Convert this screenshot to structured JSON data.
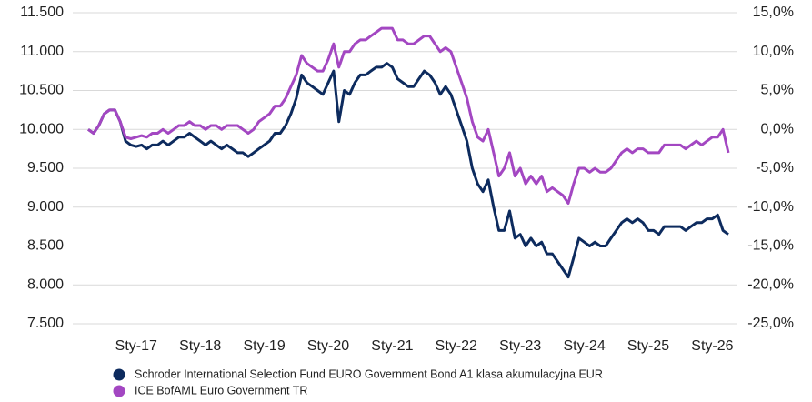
{
  "chart_data": {
    "type": "line",
    "categories": [
      null,
      null,
      null,
      null,
      null,
      null,
      null,
      null,
      null,
      "Sty-17",
      null,
      null,
      null,
      null,
      null,
      null,
      null,
      null,
      null,
      null,
      null,
      "Sty-18",
      null,
      null,
      null,
      null,
      null,
      null,
      null,
      null,
      null,
      null,
      null,
      "Sty-19",
      null,
      null,
      null,
      null,
      null,
      null,
      null,
      null,
      null,
      null,
      null,
      "Sty-20",
      null,
      null,
      null,
      null,
      null,
      null,
      null,
      null,
      null,
      null,
      null,
      "Sty-21",
      null,
      null,
      null,
      null,
      null,
      null,
      null,
      null,
      null,
      null,
      null,
      "Sty-22",
      null,
      null,
      null,
      null,
      null,
      null,
      null,
      null,
      null,
      null,
      null,
      "Sty-23",
      null,
      null,
      null,
      null,
      null,
      null,
      null,
      null,
      null,
      null,
      null,
      "Sty-24",
      null,
      null,
      null,
      null,
      null,
      null,
      null,
      null,
      null,
      null,
      null,
      "Sty-25",
      null,
      null,
      null,
      null,
      null,
      null,
      null,
      null,
      null,
      null,
      null,
      "Sty-26",
      null,
      null,
      null
    ],
    "series": [
      {
        "name": "Schroder International Selection Fund EURO Government Bond A1 klasa akumulacyjna EUR",
        "color": "#0d2b5e",
        "axis": "y",
        "values": [
          10000,
          9950,
          10050,
          10200,
          10250,
          10250,
          10100,
          9850,
          9800,
          9780,
          9800,
          9750,
          9800,
          9800,
          9850,
          9800,
          9850,
          9900,
          9900,
          9950,
          9900,
          9850,
          9800,
          9850,
          9800,
          9750,
          9800,
          9750,
          9700,
          9700,
          9650,
          9700,
          9750,
          9800,
          9850,
          9950,
          9950,
          10050,
          10200,
          10400,
          10700,
          10600,
          10550,
          10500,
          10450,
          10600,
          10750,
          10100,
          10500,
          10450,
          10600,
          10700,
          10700,
          10750,
          10800,
          10800,
          10850,
          10800,
          10650,
          10600,
          10550,
          10550,
          10650,
          10750,
          10700,
          10600,
          10450,
          10550,
          10450,
          10250,
          10050,
          9850,
          9500,
          9300,
          9200,
          9350,
          9000,
          8700,
          8700,
          8950,
          8600,
          8650,
          8500,
          8600,
          8500,
          8550,
          8400,
          8400,
          8300,
          8200,
          8100,
          8350,
          8600,
          8550,
          8500,
          8550,
          8500,
          8500,
          8600,
          8700,
          8800,
          8850,
          8800,
          8850,
          8800,
          8700,
          8700,
          8650,
          8750,
          8750,
          8750,
          8750,
          8700,
          8750,
          8800,
          8800,
          8850,
          8850,
          8900,
          8700,
          8650
        ]
      },
      {
        "name": "ICE BofAML Euro Government TR",
        "color": "#a347c2",
        "axis": "y2",
        "values": [
          0,
          -0.5,
          0.5,
          2,
          2.5,
          2.5,
          1,
          -1,
          -1.2,
          -1,
          -0.8,
          -1,
          -0.5,
          -0.5,
          0,
          -0.5,
          0,
          0.5,
          0.5,
          1,
          0.5,
          0.5,
          0,
          0.5,
          0.5,
          0,
          0.5,
          0.5,
          0.5,
          0,
          -0.5,
          0,
          1,
          1.5,
          2,
          3,
          3,
          4,
          5.5,
          7,
          9.5,
          8.5,
          8,
          7.5,
          7.5,
          9,
          11,
          8,
          10,
          10,
          11,
          11.5,
          11.5,
          12,
          12.5,
          13,
          13,
          13,
          11.5,
          11.5,
          11,
          11,
          11.5,
          12,
          12,
          11,
          10,
          10.5,
          10,
          8,
          6,
          4,
          1,
          -1,
          -1.5,
          0,
          -3,
          -6,
          -5,
          -3,
          -6,
          -5,
          -7,
          -6,
          -7,
          -6,
          -8,
          -7.5,
          -8,
          -8.5,
          -9.5,
          -7,
          -5,
          -5,
          -5.5,
          -5,
          -5.5,
          -5.5,
          -5,
          -4,
          -3,
          -2.5,
          -3,
          -2.5,
          -2.5,
          -3,
          -3,
          -3,
          -2,
          -2,
          -2,
          -2,
          -2.5,
          -2,
          -1.5,
          -2,
          -1.5,
          -1,
          -1,
          0,
          -3
        ]
      }
    ],
    "ylim": [
      7500,
      11500
    ],
    "yticks": [
      {
        "value": 7500,
        "label": "7.500"
      },
      {
        "value": 8000,
        "label": "8.000"
      },
      {
        "value": 8500,
        "label": "8.500"
      },
      {
        "value": 9000,
        "label": "9.000"
      },
      {
        "value": 9500,
        "label": "9.500"
      },
      {
        "value": 10000,
        "label": "10.000"
      },
      {
        "value": 10500,
        "label": "10.500"
      },
      {
        "value": 11000,
        "label": "11.000"
      },
      {
        "value": 11500,
        "label": "11.500"
      }
    ],
    "y2lim": [
      -25,
      15
    ],
    "y2ticks": [
      {
        "value": -25,
        "label": "-25,0%"
      },
      {
        "value": -20,
        "label": "-20,0%"
      },
      {
        "value": -15,
        "label": "-15,0%"
      },
      {
        "value": -10,
        "label": "-10,0%"
      },
      {
        "value": -5,
        "label": "-5,0%"
      },
      {
        "value": 0,
        "label": "0,0%"
      },
      {
        "value": 5,
        "label": "5,0%"
      },
      {
        "value": 10,
        "label": "10,0%"
      },
      {
        "value": 15,
        "label": "15,0%"
      }
    ],
    "grid": true,
    "legend": "bottom"
  }
}
